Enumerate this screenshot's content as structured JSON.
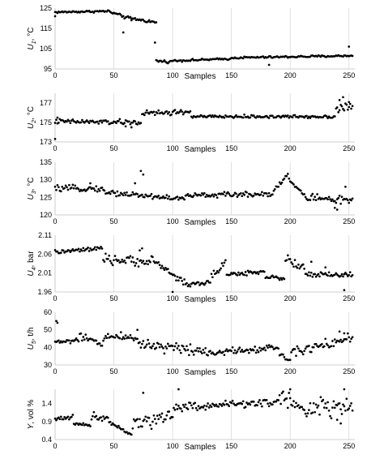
{
  "chart_data": [
    {
      "type": "scatter",
      "ylabel_main": "U",
      "ylabel_sub": "1",
      "ylabel_unit": ", °C",
      "xlabel": "Samples",
      "xlim": [
        0,
        255
      ],
      "ylim": [
        95,
        125
      ],
      "yticks": [
        "95",
        "105",
        "115",
        "125"
      ],
      "ytick_values": [
        95,
        105,
        115,
        125
      ],
      "xticks": [
        "0",
        "50",
        "100",
        "150",
        "200",
        "250"
      ],
      "xtick_values": [
        0,
        50,
        100,
        150,
        200,
        250
      ],
      "grid_x": true,
      "segments": [
        {
          "from": 0,
          "to": 46,
          "start": 123,
          "end": 123.5,
          "noise": 0.5
        },
        {
          "from": 47,
          "to": 58,
          "start": 123,
          "end": 121,
          "noise": 0.6
        },
        {
          "from": 59,
          "to": 85,
          "start": 120.5,
          "end": 118,
          "noise": 0.7
        },
        {
          "from": 86,
          "to": 98,
          "start": 99,
          "end": 98.5,
          "noise": 0.6
        },
        {
          "from": 99,
          "to": 150,
          "start": 99,
          "end": 100,
          "noise": 0.5
        },
        {
          "from": 151,
          "to": 253,
          "start": 100.5,
          "end": 101.5,
          "noise": 0.5
        }
      ],
      "outliers": [
        [
          0,
          121
        ],
        [
          58,
          113
        ],
        [
          65,
          119
        ],
        [
          85,
          108
        ],
        [
          86,
          118
        ],
        [
          250,
          106
        ],
        [
          182,
          97
        ]
      ]
    },
    {
      "type": "scatter",
      "ylabel_main": "U",
      "ylabel_sub": "2",
      "ylabel_unit": ", °C",
      "xlabel": "Samples",
      "xlim": [
        0,
        255
      ],
      "ylim": [
        173,
        178
      ],
      "yticks": [
        "173",
        "175",
        "177"
      ],
      "ytick_values": [
        173,
        175,
        177
      ],
      "xticks": [
        "0",
        "50",
        "100",
        "150",
        "200",
        "250"
      ],
      "xtick_values": [
        0,
        50,
        100,
        150,
        200,
        250
      ],
      "grid_x": true,
      "segments": [
        {
          "from": 0,
          "to": 73,
          "start": 175.1,
          "end": 175.0,
          "noise": 0.25
        },
        {
          "from": 74,
          "to": 115,
          "start": 175.9,
          "end": 176.1,
          "noise": 0.3
        },
        {
          "from": 116,
          "to": 238,
          "start": 175.6,
          "end": 175.6,
          "noise": 0.15
        },
        {
          "from": 239,
          "to": 253,
          "start": 176.5,
          "end": 176.6,
          "noise": 0.5
        }
      ],
      "outliers": [
        [
          0,
          173.3
        ],
        [
          2,
          175.5
        ],
        [
          60,
          174.6
        ],
        [
          65,
          174.5
        ],
        [
          245,
          177.6
        ],
        [
          242,
          177.3
        ],
        [
          250,
          177.1
        ]
      ]
    },
    {
      "type": "scatter",
      "ylabel_main": "U",
      "ylabel_sub": "3",
      "ylabel_unit": ", °C",
      "xlabel": "Samples",
      "xlim": [
        0,
        255
      ],
      "ylim": [
        120,
        135
      ],
      "yticks": [
        "120",
        "125",
        "130",
        "135"
      ],
      "ytick_values": [
        120,
        125,
        130,
        135
      ],
      "xticks": [
        "0",
        "50",
        "100",
        "150",
        "200",
        "250"
      ],
      "xtick_values": [
        0,
        50,
        100,
        150,
        200,
        250
      ],
      "grid_x": true,
      "segments": [
        {
          "from": 0,
          "to": 40,
          "start": 127.5,
          "end": 127.5,
          "noise": 0.8
        },
        {
          "from": 41,
          "to": 110,
          "start": 126.5,
          "end": 124.5,
          "noise": 0.8
        },
        {
          "from": 111,
          "to": 185,
          "start": 125.5,
          "end": 126,
          "noise": 0.7
        },
        {
          "from": 186,
          "to": 198,
          "start": 127,
          "end": 131.5,
          "noise": 0.6
        },
        {
          "from": 199,
          "to": 215,
          "start": 130,
          "end": 124.5,
          "noise": 0.5
        },
        {
          "from": 216,
          "to": 253,
          "start": 125,
          "end": 124,
          "noise": 1.2
        }
      ],
      "outliers": [
        [
          73,
          132.5
        ],
        [
          75,
          131.5
        ],
        [
          68,
          129
        ],
        [
          30,
          129
        ],
        [
          238,
          122
        ],
        [
          240,
          121.5
        ],
        [
          247,
          128
        ]
      ]
    },
    {
      "type": "scatter",
      "ylabel_main": "U",
      "ylabel_sub": "4",
      "ylabel_unit": ", bar",
      "xlabel": "Samples",
      "xlim": [
        0,
        255
      ],
      "ylim": [
        1.96,
        2.11
      ],
      "yticks": [
        "1.96",
        "2.01",
        "2.06",
        "2.11"
      ],
      "ytick_values": [
        1.96,
        2.01,
        2.06,
        2.11
      ],
      "xticks": [
        "0",
        "50",
        "100",
        "150",
        "200",
        "250"
      ],
      "xtick_values": [
        0,
        50,
        100,
        150,
        200,
        250
      ],
      "grid_x": true,
      "segments": [
        {
          "from": 0,
          "to": 40,
          "start": 2.065,
          "end": 2.075,
          "noise": 0.006
        },
        {
          "from": 41,
          "to": 88,
          "start": 2.045,
          "end": 2.04,
          "noise": 0.012
        },
        {
          "from": 89,
          "to": 112,
          "start": 2.03,
          "end": 1.98,
          "noise": 0.01
        },
        {
          "from": 113,
          "to": 132,
          "start": 1.98,
          "end": 1.985,
          "noise": 0.006
        },
        {
          "from": 133,
          "to": 145,
          "start": 2.0,
          "end": 2.04,
          "noise": 0.01
        },
        {
          "from": 146,
          "to": 178,
          "start": 2.005,
          "end": 2.015,
          "noise": 0.006
        },
        {
          "from": 179,
          "to": 195,
          "start": 2.0,
          "end": 1.995,
          "noise": 0.005
        },
        {
          "from": 196,
          "to": 212,
          "start": 2.05,
          "end": 2.02,
          "noise": 0.012
        },
        {
          "from": 213,
          "to": 253,
          "start": 2.005,
          "end": 2.005,
          "noise": 0.008
        }
      ],
      "outliers": [
        [
          74,
          2.075
        ],
        [
          72,
          2.07
        ],
        [
          100,
          1.96
        ],
        [
          246,
          1.965
        ],
        [
          218,
          2.04
        ],
        [
          230,
          2.025
        ]
      ]
    },
    {
      "type": "scatter",
      "ylabel_main": "U",
      "ylabel_sub": "5",
      "ylabel_unit": ", t/h",
      "xlabel": "Samples",
      "xlim": [
        0,
        255
      ],
      "ylim": [
        30,
        60
      ],
      "yticks": [
        "30",
        "40",
        "50",
        "60"
      ],
      "ytick_values": [
        30,
        40,
        50,
        60
      ],
      "xticks": [
        "0",
        "50",
        "100",
        "150",
        "200",
        "250"
      ],
      "xtick_values": [
        0,
        50,
        100,
        150,
        200,
        250
      ],
      "grid_x": true,
      "segments": [
        {
          "from": 0,
          "to": 20,
          "start": 43,
          "end": 44,
          "noise": 1.5
        },
        {
          "from": 21,
          "to": 40,
          "start": 46,
          "end": 42,
          "noise": 2.0
        },
        {
          "from": 41,
          "to": 70,
          "start": 46,
          "end": 46,
          "noise": 2.5
        },
        {
          "from": 71,
          "to": 130,
          "start": 42,
          "end": 38,
          "noise": 3.0
        },
        {
          "from": 131,
          "to": 190,
          "start": 37,
          "end": 40,
          "noise": 2.0
        },
        {
          "from": 191,
          "to": 200,
          "start": 36,
          "end": 33,
          "noise": 1.5
        },
        {
          "from": 201,
          "to": 253,
          "start": 38,
          "end": 45,
          "noise": 3.0
        }
      ],
      "outliers": [
        [
          1,
          55
        ],
        [
          2,
          54
        ],
        [
          70,
          50
        ],
        [
          242,
          49
        ],
        [
          246,
          48
        ]
      ]
    },
    {
      "type": "scatter",
      "ylabel_main": "Y",
      "ylabel_sub": "",
      "ylabel_unit": ", vol %",
      "xlabel": "Samples",
      "xlim": [
        0,
        255
      ],
      "ylim": [
        0.4,
        1.8
      ],
      "yticks": [
        "0.4",
        "0.9",
        "1.4"
      ],
      "ytick_values": [
        0.4,
        0.9,
        1.4
      ],
      "xticks": [
        "0",
        "50",
        "100",
        "150",
        "200",
        "250"
      ],
      "xtick_values": [
        0,
        50,
        100,
        150,
        200,
        250
      ],
      "grid_x": true,
      "segments": [
        {
          "from": 0,
          "to": 15,
          "start": 0.95,
          "end": 1.05,
          "noise": 0.08
        },
        {
          "from": 16,
          "to": 30,
          "start": 0.85,
          "end": 0.8,
          "noise": 0.05
        },
        {
          "from": 31,
          "to": 45,
          "start": 1.05,
          "end": 1.0,
          "noise": 0.1
        },
        {
          "from": 46,
          "to": 65,
          "start": 0.9,
          "end": 0.55,
          "noise": 0.05
        },
        {
          "from": 66,
          "to": 100,
          "start": 0.8,
          "end": 1.1,
          "noise": 0.2
        },
        {
          "from": 101,
          "to": 190,
          "start": 1.3,
          "end": 1.45,
          "noise": 0.12
        },
        {
          "from": 191,
          "to": 215,
          "start": 1.6,
          "end": 1.2,
          "noise": 0.2
        },
        {
          "from": 216,
          "to": 253,
          "start": 1.3,
          "end": 1.3,
          "noise": 0.25
        }
      ],
      "outliers": [
        [
          75,
          1.7
        ],
        [
          105,
          1.8
        ],
        [
          200,
          1.8
        ],
        [
          246,
          1.8
        ],
        [
          243,
          0.85
        ],
        [
          240,
          0.95
        ]
      ]
    }
  ]
}
